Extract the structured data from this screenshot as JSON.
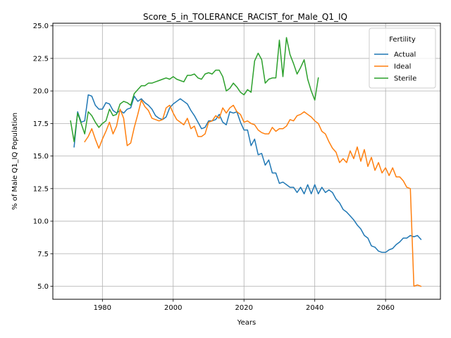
{
  "chart_data": {
    "type": "line",
    "title": "Score_5_in_TOLERANCE_RACIST_for_Male_Q1_IQ",
    "xlabel": "Years",
    "ylabel": "% of Male Q1_IQ Population",
    "xlim": [
      1966.0,
      2075.5
    ],
    "ylim": [
      4.0,
      25.2
    ],
    "xticks": [
      1980,
      2000,
      2020,
      2040,
      2060
    ],
    "yticks": [
      5.0,
      7.5,
      10.0,
      12.5,
      15.0,
      17.5,
      20.0,
      22.5,
      25.0
    ],
    "xtick_labels": [
      "1980",
      "2000",
      "2020",
      "2040",
      "2060"
    ],
    "ytick_labels": [
      "5.0",
      "7.5",
      "10.0",
      "12.5",
      "15.0",
      "17.5",
      "20.0",
      "22.5",
      "25.0"
    ],
    "grid": true,
    "legend": {
      "title": "Fertility",
      "position": "top-right"
    },
    "series": [
      {
        "name": "Actual",
        "color": "#1f77b4",
        "x": [
          1972,
          1973,
          1974,
          1975,
          1976,
          1977,
          1978,
          1979,
          1980,
          1981,
          1982,
          1983,
          1984,
          1985,
          1986,
          1987,
          1988,
          1989,
          1990,
          1991,
          1992,
          1993,
          1994,
          1995,
          1996,
          1997,
          1998,
          1999,
          2000,
          2001,
          2002,
          2003,
          2004,
          2005,
          2006,
          2007,
          2008,
          2009,
          2010,
          2011,
          2012,
          2013,
          2014,
          2015,
          2016,
          2017,
          2018,
          2019,
          2020,
          2021,
          2022,
          2023,
          2024,
          2025,
          2026,
          2027,
          2028,
          2029,
          2030,
          2031,
          2032,
          2033,
          2034,
          2035,
          2036,
          2037,
          2038,
          2039,
          2040,
          2041,
          2042,
          2043,
          2044,
          2045,
          2046,
          2047,
          2048,
          2049,
          2050,
          2051,
          2052,
          2053,
          2054,
          2055,
          2056,
          2057,
          2058,
          2059,
          2060,
          2061,
          2062,
          2063,
          2064,
          2065,
          2066,
          2067,
          2068,
          2069,
          2070
        ],
        "values": [
          15.7,
          18.4,
          17.6,
          17.7,
          19.7,
          19.6,
          18.9,
          18.6,
          18.6,
          19.1,
          19.0,
          18.5,
          18.3,
          18.5,
          18.3,
          18.6,
          18.7,
          19.6,
          19.2,
          19.4,
          19.1,
          18.9,
          18.6,
          18.1,
          17.9,
          17.8,
          18.0,
          18.7,
          19.0,
          19.2,
          19.4,
          19.2,
          19.0,
          18.5,
          18.1,
          17.6,
          17.1,
          17.2,
          17.7,
          17.7,
          17.8,
          18.2,
          17.6,
          17.4,
          18.4,
          18.3,
          18.4,
          17.6,
          17.0,
          17.0,
          15.8,
          16.3,
          15.1,
          15.2,
          14.3,
          14.7,
          13.7,
          13.7,
          12.9,
          13.0,
          12.8,
          12.6,
          12.6,
          12.2,
          12.6,
          12.1,
          12.8,
          12.1,
          12.8,
          12.1,
          12.6,
          12.2,
          12.4,
          12.2,
          11.7,
          11.4,
          10.9,
          10.7,
          10.4,
          10.1,
          9.7,
          9.4,
          8.9,
          8.7,
          8.1,
          8.0,
          7.7,
          7.6,
          7.6,
          7.8,
          7.9,
          8.2,
          8.4,
          8.7,
          8.7,
          8.9,
          8.8,
          8.9,
          8.6
        ]
      },
      {
        "name": "Ideal",
        "color": "#ff7f0e",
        "x": [
          1975,
          1976,
          1977,
          1978,
          1979,
          1980,
          1981,
          1982,
          1983,
          1984,
          1985,
          1986,
          1987,
          1988,
          1989,
          1990,
          1991,
          1992,
          1993,
          1994,
          1995,
          1996,
          1997,
          1998,
          1999,
          2000,
          2001,
          2002,
          2003,
          2004,
          2005,
          2006,
          2007,
          2008,
          2009,
          2010,
          2011,
          2012,
          2013,
          2014,
          2015,
          2016,
          2017,
          2018,
          2019,
          2020,
          2021,
          2022,
          2023,
          2024,
          2025,
          2026,
          2027,
          2028,
          2029,
          2030,
          2031,
          2032,
          2033,
          2034,
          2035,
          2036,
          2037,
          2038,
          2039,
          2040,
          2041,
          2042,
          2043,
          2044,
          2045,
          2046,
          2047,
          2048,
          2049,
          2050,
          2051,
          2052,
          2053,
          2054,
          2055,
          2056,
          2057,
          2058,
          2059,
          2060,
          2061,
          2062,
          2063,
          2064,
          2065,
          2066,
          2067,
          2068,
          2069,
          2070
        ],
        "values": [
          16.1,
          16.5,
          17.1,
          16.3,
          15.6,
          16.3,
          16.9,
          17.6,
          16.7,
          17.3,
          18.6,
          17.9,
          15.8,
          16.0,
          17.2,
          18.2,
          19.3,
          18.8,
          18.5,
          17.9,
          17.8,
          17.7,
          17.8,
          18.7,
          18.9,
          18.3,
          17.8,
          17.6,
          17.4,
          17.9,
          17.1,
          17.3,
          16.5,
          16.5,
          16.7,
          17.6,
          17.7,
          18.1,
          17.9,
          18.7,
          18.3,
          18.7,
          18.9,
          18.4,
          18.2,
          17.6,
          17.7,
          17.5,
          17.4,
          17.0,
          16.8,
          16.7,
          16.7,
          17.2,
          16.9,
          17.1,
          17.1,
          17.3,
          17.8,
          17.7,
          18.1,
          18.2,
          18.4,
          18.2,
          18.0,
          17.7,
          17.5,
          16.9,
          16.7,
          16.1,
          15.6,
          15.3,
          14.5,
          14.8,
          14.5,
          15.4,
          14.8,
          15.7,
          14.6,
          15.5,
          14.2,
          14.9,
          13.9,
          14.5,
          13.7,
          14.1,
          13.5,
          14.1,
          13.4,
          13.4,
          13.1,
          12.6,
          12.5,
          5.0,
          5.1,
          5.0
        ]
      },
      {
        "name": "Sterile",
        "color": "#2ca02c",
        "x": [
          1971,
          1972,
          1973,
          1974,
          1975,
          1976,
          1977,
          1978,
          1979,
          1980,
          1981,
          1982,
          1983,
          1984,
          1985,
          1986,
          1987,
          1988,
          1989,
          1990,
          1991,
          1992,
          1993,
          1994,
          1995,
          1996,
          1997,
          1998,
          1999,
          2000,
          2001,
          2002,
          2003,
          2004,
          2005,
          2006,
          2007,
          2008,
          2009,
          2010,
          2011,
          2012,
          2013,
          2014,
          2015,
          2016,
          2017,
          2018,
          2019,
          2020,
          2021,
          2022,
          2023,
          2024,
          2025,
          2026,
          2027,
          2028,
          2029,
          2030,
          2031,
          2032,
          2033,
          2034,
          2035,
          2036,
          2037,
          2038,
          2039,
          2040,
          2041
        ],
        "values": [
          17.7,
          16.1,
          18.3,
          17.5,
          16.7,
          18.4,
          18.1,
          17.6,
          17.2,
          17.5,
          17.7,
          18.6,
          18.1,
          18.2,
          19.0,
          19.2,
          19.1,
          18.9,
          19.8,
          20.1,
          20.4,
          20.4,
          20.6,
          20.6,
          20.7,
          20.8,
          20.9,
          21.0,
          20.9,
          21.1,
          20.9,
          20.8,
          20.7,
          21.2,
          21.2,
          21.3,
          21.0,
          20.9,
          21.3,
          21.4,
          21.3,
          21.6,
          21.6,
          21.1,
          20.0,
          20.2,
          20.6,
          20.3,
          19.9,
          19.7,
          20.1,
          19.9,
          22.3,
          22.9,
          22.4,
          20.6,
          20.9,
          21.0,
          21.0,
          23.9,
          21.1,
          24.1,
          22.8,
          22.1,
          21.3,
          21.8,
          22.4,
          20.9,
          20.0,
          19.3,
          21.0
        ]
      }
    ]
  }
}
